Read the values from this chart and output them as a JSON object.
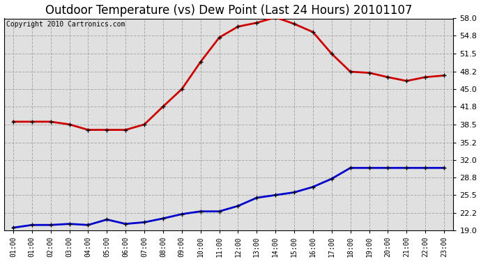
{
  "title": "Outdoor Temperature (vs) Dew Point (Last 24 Hours) 20101107",
  "copyright": "Copyright 2010 Cartronics.com",
  "x_labels": [
    "01:00",
    "01:00",
    "02:00",
    "03:00",
    "04:00",
    "05:00",
    "06:00",
    "07:00",
    "08:00",
    "09:00",
    "10:00",
    "11:00",
    "12:00",
    "13:00",
    "14:00",
    "15:00",
    "16:00",
    "17:00",
    "18:00",
    "19:00",
    "20:00",
    "21:00",
    "22:00",
    "23:00"
  ],
  "temp_data": [
    39.0,
    39.0,
    39.0,
    38.5,
    37.5,
    37.5,
    37.5,
    38.5,
    41.8,
    45.0,
    50.0,
    54.5,
    56.5,
    57.2,
    58.2,
    57.0,
    55.5,
    51.5,
    48.2,
    48.0,
    47.2,
    46.5,
    47.2,
    47.5
  ],
  "dew_data": [
    19.5,
    20.0,
    20.0,
    20.2,
    20.0,
    21.0,
    20.2,
    20.5,
    21.2,
    22.0,
    22.5,
    22.5,
    23.5,
    25.0,
    25.5,
    26.0,
    27.0,
    28.5,
    30.5,
    30.5,
    30.5,
    30.5,
    30.5,
    30.5
  ],
  "temp_color": "#cc0000",
  "dew_color": "#0000cc",
  "bg_color": "#ffffff",
  "grid_color": "#aaaaaa",
  "plot_bg_color": "#e0e0e0",
  "ylim": [
    19.0,
    58.0
  ],
  "yticks": [
    19.0,
    22.2,
    25.5,
    28.8,
    32.0,
    35.2,
    38.5,
    41.8,
    45.0,
    48.2,
    51.5,
    54.8,
    58.0
  ],
  "title_fontsize": 12,
  "copyright_fontsize": 7
}
